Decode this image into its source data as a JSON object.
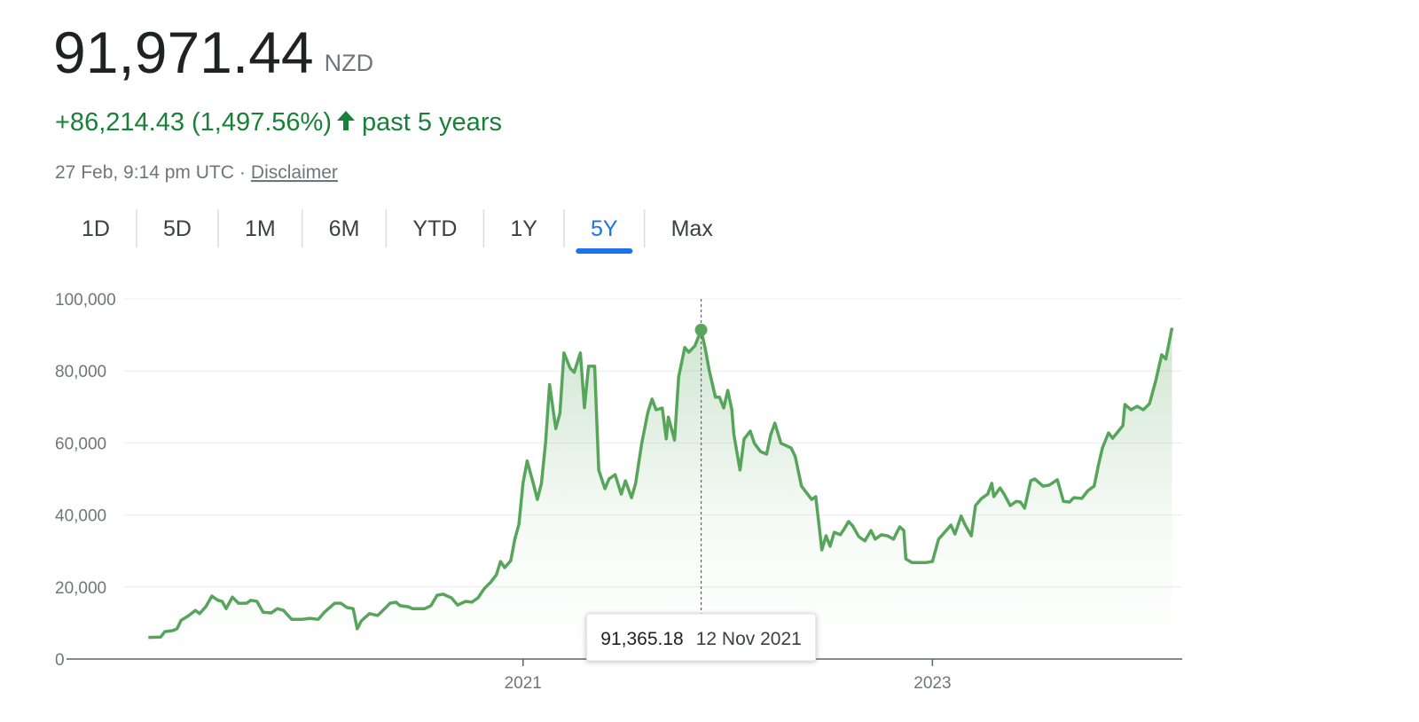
{
  "header": {
    "price": "91,971.44",
    "currency": "NZD",
    "change": "+86,214.43 (1,497.56%)",
    "period": "past 5 years",
    "timestamp": "27 Feb, 9:14 pm UTC",
    "separator": "·",
    "disclaimer": "Disclaimer"
  },
  "tabs": {
    "items": [
      "1D",
      "5D",
      "1M",
      "6M",
      "YTD",
      "1Y",
      "5Y",
      "Max"
    ],
    "selected": "5Y"
  },
  "chart_data": {
    "type": "line",
    "x": [
      2019.17,
      2019.23,
      2019.25,
      2019.29,
      2019.31,
      2019.33,
      2019.36,
      2019.4,
      2019.42,
      2019.45,
      2019.48,
      2019.51,
      2019.53,
      2019.55,
      2019.58,
      2019.61,
      2019.65,
      2019.67,
      2019.7,
      2019.73,
      2019.77,
      2019.8,
      2019.83,
      2019.87,
      2019.92,
      2019.96,
      2020.0,
      2020.03,
      2020.06,
      2020.08,
      2020.11,
      2020.14,
      2020.17,
      2020.19,
      2020.21,
      2020.25,
      2020.29,
      2020.33,
      2020.35,
      2020.38,
      2020.4,
      2020.44,
      2020.46,
      2020.52,
      2020.55,
      2020.58,
      2020.61,
      2020.65,
      2020.68,
      2020.72,
      2020.75,
      2020.78,
      2020.81,
      2020.84,
      2020.87,
      2020.89,
      2020.91,
      2020.94,
      2020.96,
      2020.98,
      2021.0,
      2021.02,
      2021.05,
      2021.07,
      2021.09,
      2021.11,
      2021.13,
      2021.16,
      2021.18,
      2021.2,
      2021.23,
      2021.25,
      2021.28,
      2021.3,
      2021.32,
      2021.35,
      2021.37,
      2021.4,
      2021.42,
      2021.45,
      2021.48,
      2021.5,
      2021.53,
      2021.55,
      2021.58,
      2021.61,
      2021.63,
      2021.65,
      2021.68,
      2021.7,
      2021.71,
      2021.74,
      2021.76,
      2021.79,
      2021.81,
      2021.84,
      2021.87,
      2021.89,
      2021.91,
      2021.94,
      2021.96,
      2021.98,
      2022.0,
      2022.02,
      2022.03,
      2022.06,
      2022.08,
      2022.11,
      2022.13,
      2022.16,
      2022.19,
      2022.21,
      2022.23,
      2022.26,
      2022.28,
      2022.31,
      2022.33,
      2022.36,
      2022.39,
      2022.41,
      2022.43,
      2022.46,
      2022.48,
      2022.5,
      2022.52,
      2022.55,
      2022.57,
      2022.59,
      2022.61,
      2022.64,
      2022.67,
      2022.7,
      2022.72,
      2022.75,
      2022.78,
      2022.81,
      2022.84,
      2022.86,
      2022.87,
      2022.9,
      2022.94,
      2022.97,
      2023.0,
      2023.03,
      2023.06,
      2023.09,
      2023.11,
      2023.14,
      2023.16,
      2023.19,
      2023.21,
      2023.24,
      2023.27,
      2023.29,
      2023.3,
      2023.33,
      2023.35,
      2023.38,
      2023.41,
      2023.43,
      2023.45,
      2023.48,
      2023.5,
      2023.54,
      2023.57,
      2023.61,
      2023.64,
      2023.67,
      2023.69,
      2023.73,
      2023.76,
      2023.79,
      2023.81,
      2023.83,
      2023.86,
      2023.88,
      2023.93,
      2023.94,
      2023.97,
      2024.0,
      2024.03,
      2024.06,
      2024.09,
      2024.12,
      2024.14,
      2024.17
    ],
    "series": [
      {
        "color": "#57a55a",
        "values": [
          6000,
          6100,
          7600,
          7900,
          8400,
          10800,
          11800,
          13500,
          12600,
          14500,
          17500,
          16300,
          16000,
          14000,
          17200,
          15500,
          15500,
          16300,
          16000,
          13000,
          12800,
          14000,
          13500,
          11000,
          11000,
          11300,
          11000,
          13000,
          14500,
          15500,
          15500,
          14300,
          14000,
          8400,
          10600,
          12600,
          12100,
          14300,
          15500,
          15800,
          14800,
          14500,
          14000,
          14000,
          14800,
          17700,
          18000,
          17000,
          15000,
          16000,
          15800,
          17000,
          19500,
          21200,
          23400,
          27100,
          25400,
          27300,
          33300,
          37400,
          48800,
          55000,
          48800,
          44300,
          48800,
          59900,
          76200,
          64000,
          68200,
          85000,
          80800,
          79600,
          85000,
          69800,
          81300,
          81300,
          52500,
          47300,
          50000,
          51200,
          45800,
          49500,
          44800,
          48800,
          59900,
          68500,
          72200,
          69200,
          69700,
          61100,
          67200,
          60800,
          78300,
          86500,
          85200,
          87000,
          91365.18,
          86200,
          80000,
          72700,
          72700,
          69700,
          74600,
          69200,
          62300,
          52500,
          61100,
          63300,
          59900,
          57600,
          56900,
          62300,
          65500,
          59900,
          59400,
          58600,
          56200,
          48000,
          45800,
          44300,
          45100,
          30300,
          34200,
          31300,
          35200,
          34500,
          36200,
          38200,
          37000,
          34000,
          32800,
          35700,
          33300,
          34500,
          34200,
          33300,
          36700,
          35700,
          27800,
          26800,
          26800,
          26800,
          27100,
          33300,
          35200,
          37200,
          34700,
          39700,
          37200,
          34200,
          42600,
          44600,
          45800,
          48800,
          45100,
          47500,
          45800,
          42600,
          43800,
          43600,
          41900,
          49500,
          50000,
          48000,
          48300,
          49800,
          43800,
          43600,
          44800,
          44600,
          46800,
          48000,
          53700,
          58600,
          62800,
          61300,
          64800,
          70700,
          69200,
          70200,
          69200,
          70900,
          77100,
          84500,
          83300,
          91971.44
        ]
      }
    ],
    "xlim": [
      2018.77,
      2024.22
    ],
    "xticks": [
      2021,
      2023
    ],
    "ylim": [
      0,
      100000
    ],
    "yticks": [
      0,
      {
        "value": 20000,
        "label": "20,000"
      },
      {
        "value": 40000,
        "label": "40,000"
      },
      {
        "value": 60000,
        "label": "60,000"
      },
      {
        "value": 80000,
        "label": "80,000"
      },
      {
        "value": 100000,
        "label": "100,000"
      }
    ],
    "grid": true,
    "tooltip": {
      "value": 91365.18,
      "label": "91,365.18",
      "date": "12 Nov 2021",
      "x": 2021.87
    }
  }
}
